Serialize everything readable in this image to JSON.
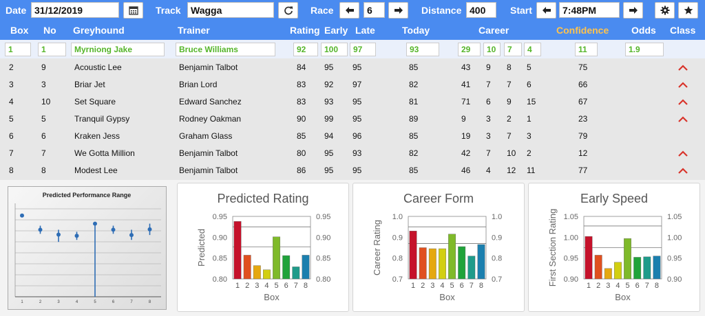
{
  "toolbar": {
    "date_label": "Date",
    "date_value": "31/12/2019",
    "track_label": "Track",
    "track_value": "Wagga",
    "race_label": "Race",
    "race_value": "6",
    "distance_label": "Distance",
    "distance_value": "400",
    "start_label": "Start",
    "start_value": "7:48PM"
  },
  "headers": {
    "box": "Box",
    "no": "No",
    "greyhound": "Greyhound",
    "trainer": "Trainer",
    "rating": "Rating",
    "early": "Early",
    "late": "Late",
    "today": "Today",
    "career": "Career",
    "confidence": "Confidence",
    "odds": "Odds",
    "class": "Class"
  },
  "selected": {
    "box": "1",
    "no": "1",
    "greyhound": "Myrniong Jake",
    "trainer": "Bruce Williams",
    "rating": "92",
    "early": "100",
    "late": "97",
    "today": "93",
    "career1": "29",
    "career2": "10",
    "career3": "7",
    "career4": "4",
    "confidence": "11",
    "odds": "1.9"
  },
  "rows": [
    {
      "box": "2",
      "no": "9",
      "greyhound": "Acoustic Lee",
      "trainer": "Benjamin Talbot",
      "rating": "84",
      "early": "95",
      "late": "95",
      "today": "85",
      "c1": "43",
      "c2": "9",
      "c3": "8",
      "c4": "5",
      "confidence": "75",
      "class_up": true
    },
    {
      "box": "3",
      "no": "3",
      "greyhound": "Briar Jet",
      "trainer": "Brian Lord",
      "rating": "83",
      "early": "92",
      "late": "97",
      "today": "82",
      "c1": "41",
      "c2": "7",
      "c3": "7",
      "c4": "6",
      "confidence": "66",
      "class_up": true
    },
    {
      "box": "4",
      "no": "10",
      "greyhound": "Set Square",
      "trainer": "Edward Sanchez",
      "rating": "83",
      "early": "93",
      "late": "95",
      "today": "81",
      "c1": "71",
      "c2": "6",
      "c3": "9",
      "c4": "15",
      "confidence": "67",
      "class_up": true
    },
    {
      "box": "5",
      "no": "5",
      "greyhound": "Tranquil Gypsy",
      "trainer": "Rodney Oakman",
      "rating": "90",
      "early": "99",
      "late": "95",
      "today": "89",
      "c1": "9",
      "c2": "3",
      "c3": "2",
      "c4": "1",
      "confidence": "23",
      "class_up": true
    },
    {
      "box": "6",
      "no": "6",
      "greyhound": "Kraken Jess",
      "trainer": "Graham Glass",
      "rating": "85",
      "early": "94",
      "late": "96",
      "today": "85",
      "c1": "19",
      "c2": "3",
      "c3": "7",
      "c4": "3",
      "confidence": "79",
      "class_up": false
    },
    {
      "box": "7",
      "no": "7",
      "greyhound": "We Gotta Million",
      "trainer": "Benjamin Talbot",
      "rating": "80",
      "early": "95",
      "late": "93",
      "today": "82",
      "c1": "42",
      "c2": "7",
      "c3": "10",
      "c4": "2",
      "confidence": "12",
      "class_up": true
    },
    {
      "box": "8",
      "no": "8",
      "greyhound": "Modest Lee",
      "trainer": "Benjamin Talbot",
      "rating": "86",
      "early": "95",
      "late": "95",
      "today": "85",
      "c1": "46",
      "c2": "4",
      "c3": "12",
      "c4": "11",
      "confidence": "77",
      "class_up": true
    }
  ],
  "colors": {
    "header_blue": "#4a8bf0",
    "accent_green": "#55b52a",
    "confidence_orange": "#ffc34d",
    "caret_red": "#d9342b",
    "bars": [
      "#c5122b",
      "#e0501f",
      "#e5a80f",
      "#d2cf12",
      "#7fba2a",
      "#20a33a",
      "#1f9b8a",
      "#1b7fae"
    ]
  },
  "chart_data": [
    {
      "type": "scatter",
      "title": "Predicted Performance Range",
      "categories": [
        "1",
        "2",
        "3",
        "4",
        "5",
        "6",
        "7",
        "8"
      ],
      "values": [
        0.94,
        0.905,
        0.893,
        0.89,
        0.92,
        0.905,
        0.892,
        0.906
      ],
      "low": [
        0.94,
        0.895,
        0.875,
        0.88,
        0.74,
        0.895,
        0.88,
        0.892
      ],
      "high": [
        0.94,
        0.915,
        0.905,
        0.9,
        0.92,
        0.915,
        0.905,
        0.92
      ],
      "ylim": [
        0.74,
        0.97
      ]
    },
    {
      "type": "bar",
      "title": "Predicted Rating",
      "xlabel": "Box",
      "ylabel": "Predicted",
      "categories": [
        "1",
        "2",
        "3",
        "4",
        "5",
        "6",
        "7",
        "8"
      ],
      "values": [
        0.938,
        0.857,
        0.832,
        0.822,
        0.901,
        0.856,
        0.829,
        0.857
      ],
      "ylim": [
        0.8,
        0.95
      ],
      "yticks": [
        "0.80",
        "0.85",
        "0.90",
        "0.95"
      ],
      "reflines": [
        0.925,
        0.877
      ]
    },
    {
      "type": "bar",
      "title": "Career Form",
      "xlabel": "Box",
      "ylabel": "Career Rating",
      "categories": [
        "1",
        "2",
        "3",
        "4",
        "5",
        "6",
        "7",
        "8"
      ],
      "values": [
        0.93,
        0.85,
        0.845,
        0.845,
        0.915,
        0.855,
        0.81,
        0.865
      ],
      "ylim": [
        0.7,
        1.0
      ],
      "yticks": [
        "0.7",
        "0.8",
        "0.9",
        "1.0"
      ],
      "reflines": [
        0.95,
        0.87
      ]
    },
    {
      "type": "bar",
      "title": "Early Speed",
      "xlabel": "Box",
      "ylabel": "First Section Rating",
      "categories": [
        "1",
        "2",
        "3",
        "4",
        "5",
        "6",
        "7",
        "8"
      ],
      "values": [
        1.002,
        0.957,
        0.925,
        0.94,
        0.997,
        0.952,
        0.953,
        0.955
      ],
      "ylim": [
        0.9,
        1.05
      ],
      "yticks": [
        "0.90",
        "0.95",
        "1.00",
        "1.05"
      ],
      "reflines": [
        1.027,
        0.975
      ]
    }
  ]
}
